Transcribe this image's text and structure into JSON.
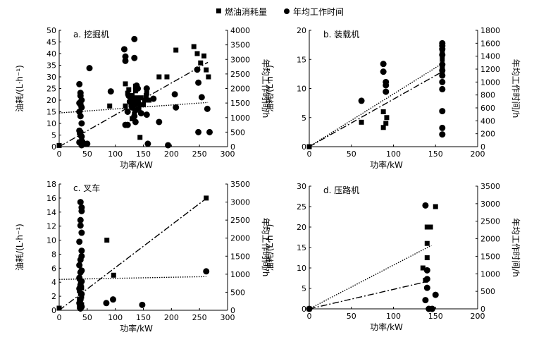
{
  "legend": {
    "fuel_label": "燃油消耗量",
    "hours_label": "年均工作时间"
  },
  "chart_data": [
    {
      "type": "scatter",
      "title": "a. 挖掘机",
      "xlabel": "功率/kW",
      "ylabel_left": "油耗/(L·h⁻¹)",
      "ylabel_right": "年均工作时间/h",
      "xlim": [
        0,
        300
      ],
      "xticks": [
        0,
        50,
        100,
        150,
        200,
        250,
        300
      ],
      "ylim_left": [
        0,
        50
      ],
      "yticks_left": [
        0,
        5,
        10,
        15,
        20,
        25,
        30,
        35,
        40,
        45,
        50
      ],
      "ylim_right": [
        0,
        4000
      ],
      "yticks_right": [
        0,
        500,
        1000,
        1500,
        2000,
        2500,
        3000,
        3500,
        4000
      ],
      "fuel_points": [
        [
          0,
          0.5
        ],
        [
          36,
          6
        ],
        [
          38,
          5
        ],
        [
          40,
          3
        ],
        [
          42,
          2
        ],
        [
          44,
          1
        ],
        [
          36,
          2
        ],
        [
          90,
          17.5
        ],
        [
          118,
          17.5
        ],
        [
          118,
          27
        ],
        [
          122,
          23
        ],
        [
          124,
          24.5
        ],
        [
          128,
          18
        ],
        [
          130,
          22
        ],
        [
          132,
          20
        ],
        [
          134,
          18
        ],
        [
          136,
          26
        ],
        [
          136,
          24
        ],
        [
          138,
          21
        ],
        [
          140,
          19
        ],
        [
          142,
          16
        ],
        [
          144,
          4
        ],
        [
          146,
          21
        ],
        [
          150,
          18
        ],
        [
          152,
          20
        ],
        [
          155,
          22
        ],
        [
          156,
          23
        ],
        [
          160,
          20
        ],
        [
          178,
          30
        ],
        [
          192,
          30
        ],
        [
          208,
          41.5
        ],
        [
          240,
          43
        ],
        [
          246,
          40
        ],
        [
          252,
          36
        ],
        [
          258,
          39
        ],
        [
          262,
          33
        ],
        [
          266,
          30
        ],
        [
          130,
          12
        ],
        [
          134,
          14
        ]
      ],
      "hours_points": [
        [
          36,
          2150
        ],
        [
          38,
          1850
        ],
        [
          38,
          1750
        ],
        [
          40,
          1600
        ],
        [
          36,
          1500
        ],
        [
          38,
          1450
        ],
        [
          40,
          1350
        ],
        [
          36,
          1200
        ],
        [
          38,
          1050
        ],
        [
          40,
          800
        ],
        [
          36,
          550
        ],
        [
          38,
          500
        ],
        [
          40,
          350
        ],
        [
          36,
          150
        ],
        [
          40,
          50
        ],
        [
          44,
          100
        ],
        [
          50,
          100
        ],
        [
          54,
          2700
        ],
        [
          92,
          1900
        ],
        [
          116,
          3350
        ],
        [
          118,
          3100
        ],
        [
          118,
          2950
        ],
        [
          118,
          750
        ],
        [
          122,
          1200
        ],
        [
          122,
          750
        ],
        [
          124,
          1750
        ],
        [
          126,
          1550
        ],
        [
          130,
          1350
        ],
        [
          132,
          1650
        ],
        [
          134,
          3700
        ],
        [
          134,
          3050
        ],
        [
          134,
          1050
        ],
        [
          136,
          1250
        ],
        [
          136,
          850
        ],
        [
          138,
          2100
        ],
        [
          140,
          2000
        ],
        [
          140,
          1550
        ],
        [
          142,
          1450
        ],
        [
          146,
          1150
        ],
        [
          156,
          2000
        ],
        [
          156,
          1100
        ],
        [
          158,
          100
        ],
        [
          168,
          1650
        ],
        [
          178,
          850
        ],
        [
          194,
          50
        ],
        [
          206,
          1800
        ],
        [
          208,
          1350
        ],
        [
          246,
          2650
        ],
        [
          248,
          2200
        ],
        [
          248,
          500
        ],
        [
          254,
          1700
        ],
        [
          264,
          1300
        ],
        [
          268,
          500
        ]
      ],
      "fuel_trend": [
        [
          0,
          14.5
        ],
        [
          265,
          19
        ]
      ],
      "hours_trend": [
        [
          0,
          0
        ],
        [
          265,
          2900
        ]
      ]
    },
    {
      "type": "scatter",
      "title": "b. 装载机",
      "xlabel": "功率/kW",
      "ylabel_left": "油耗/(L·h⁻¹)",
      "ylabel_right": "年均工作时间/h",
      "xlim": [
        0,
        200
      ],
      "xticks": [
        0,
        50,
        100,
        150,
        200
      ],
      "ylim_left": [
        0,
        20
      ],
      "yticks_left": [
        0,
        5,
        10,
        15,
        20
      ],
      "ylim_right": [
        0,
        1800
      ],
      "yticks_right": [
        0,
        200,
        400,
        600,
        800,
        1000,
        1200,
        1400,
        1600,
        1800
      ],
      "fuel_points": [
        [
          0,
          0
        ],
        [
          62,
          4.2
        ],
        [
          88,
          3.3
        ],
        [
          88,
          6
        ],
        [
          91,
          4
        ],
        [
          92,
          5
        ],
        [
          158,
          16.5
        ],
        [
          158,
          15
        ],
        [
          158,
          14
        ],
        [
          158,
          13.5
        ],
        [
          158,
          13
        ]
      ],
      "hours_points": [
        [
          62,
          710
        ],
        [
          88,
          1280
        ],
        [
          88,
          1160
        ],
        [
          91,
          1000
        ],
        [
          91,
          950
        ],
        [
          91,
          850
        ],
        [
          158,
          1600
        ],
        [
          158,
          1560
        ],
        [
          158,
          1510
        ],
        [
          158,
          1420
        ],
        [
          158,
          1270
        ],
        [
          158,
          1180
        ],
        [
          158,
          1100
        ],
        [
          158,
          1000
        ],
        [
          158,
          890
        ],
        [
          158,
          550
        ],
        [
          158,
          290
        ],
        [
          158,
          190
        ]
      ],
      "fuel_trend": [
        [
          0,
          0
        ],
        [
          158,
          14.3
        ]
      ],
      "hours_trend": [
        [
          0,
          0
        ],
        [
          158,
          1160
        ]
      ]
    },
    {
      "type": "scatter",
      "title": "c. 叉车",
      "xlabel": "功率/kW",
      "ylabel_left": "油耗/(L·h⁻¹)",
      "ylabel_right": "年均工作时间/h",
      "xlim": [
        0,
        300
      ],
      "xticks": [
        0,
        50,
        100,
        150,
        200,
        250,
        300
      ],
      "ylim_left": [
        0,
        18
      ],
      "yticks_left": [
        0,
        2,
        4,
        6,
        8,
        10,
        12,
        14,
        16,
        18
      ],
      "ylim_right": [
        0,
        3500
      ],
      "yticks_right": [
        0,
        500,
        1000,
        1500,
        2000,
        2500,
        3000,
        3500
      ],
      "fuel_points": [
        [
          0,
          0.3
        ],
        [
          36,
          4.5
        ],
        [
          38,
          3.8
        ],
        [
          40,
          3.2
        ],
        [
          36,
          2.8
        ],
        [
          38,
          2.4
        ],
        [
          40,
          2
        ],
        [
          36,
          1.6
        ],
        [
          38,
          1.2
        ],
        [
          40,
          0.8
        ],
        [
          36,
          0.5
        ],
        [
          85,
          10
        ],
        [
          97,
          5
        ],
        [
          262,
          16
        ]
      ],
      "hours_points": [
        [
          38,
          3000
        ],
        [
          40,
          2850
        ],
        [
          40,
          2750
        ],
        [
          38,
          2500
        ],
        [
          38,
          2350
        ],
        [
          40,
          2150
        ],
        [
          36,
          1900
        ],
        [
          40,
          1650
        ],
        [
          40,
          1500
        ],
        [
          38,
          1400
        ],
        [
          36,
          1250
        ],
        [
          40,
          1100
        ],
        [
          38,
          1050
        ],
        [
          36,
          900
        ],
        [
          40,
          800
        ],
        [
          38,
          700
        ],
        [
          36,
          600
        ],
        [
          40,
          450
        ],
        [
          38,
          300
        ],
        [
          36,
          200
        ],
        [
          40,
          100
        ],
        [
          38,
          50
        ],
        [
          84,
          200
        ],
        [
          96,
          300
        ],
        [
          148,
          150
        ],
        [
          262,
          1080
        ]
      ],
      "fuel_trend": [
        [
          0,
          4.4
        ],
        [
          262,
          4.8
        ]
      ],
      "hours_trend": [
        [
          0,
          0
        ],
        [
          262,
          3100
        ]
      ]
    },
    {
      "type": "scatter",
      "title": "d. 压路机",
      "xlabel": "功率/kW",
      "ylabel_left": "油耗/(L·h⁻¹)",
      "ylabel_right": "年均工作时间/h",
      "xlim": [
        0,
        200
      ],
      "xticks": [
        0,
        50,
        100,
        150,
        200
      ],
      "ylim_left": [
        0,
        30
      ],
      "yticks_left": [
        0,
        5,
        10,
        15,
        20,
        25,
        30
      ],
      "ylim_right": [
        0,
        3500
      ],
      "yticks_right": [
        0,
        500,
        1000,
        1500,
        2000,
        2500,
        3000,
        3500
      ],
      "fuel_points": [
        [
          0,
          0
        ],
        [
          135,
          10
        ],
        [
          138,
          7
        ],
        [
          140,
          12.5
        ],
        [
          140,
          16
        ],
        [
          140,
          20
        ],
        [
          144,
          20
        ],
        [
          150,
          25
        ]
      ],
      "hours_points": [
        [
          0,
          0
        ],
        [
          138,
          2950
        ],
        [
          140,
          1100
        ],
        [
          140,
          850
        ],
        [
          140,
          600
        ],
        [
          142,
          0
        ],
        [
          146,
          0
        ],
        [
          150,
          400
        ],
        [
          138,
          250
        ]
      ],
      "fuel_trend": [
        [
          0,
          0
        ],
        [
          145,
          15.5
        ]
      ],
      "hours_trend": [
        [
          0,
          0
        ],
        [
          142,
          790
        ]
      ]
    }
  ]
}
